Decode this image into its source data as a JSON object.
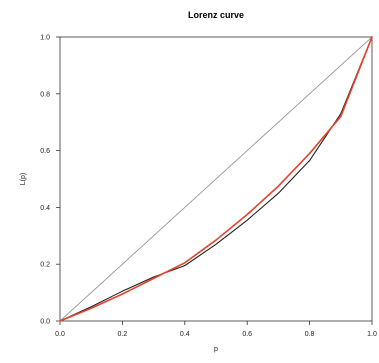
{
  "chart_data": {
    "type": "line",
    "title": "Lorenz curve",
    "xlabel": "p",
    "ylabel": "L(p)",
    "xlim": [
      0,
      1
    ],
    "ylim": [
      0,
      1
    ],
    "xticks": [
      "0.0",
      "0.2",
      "0.4",
      "0.6",
      "0.8",
      "1.0"
    ],
    "yticks": [
      "0.0",
      "0.2",
      "0.4",
      "0.6",
      "0.8",
      "1.0"
    ],
    "grid": false,
    "series": [
      {
        "color": "#9a9a9a",
        "x": [
          0,
          1
        ],
        "y": [
          0,
          1
        ]
      },
      {
        "color": "#222222",
        "x": [
          0,
          0.1,
          0.2,
          0.3,
          0.4,
          0.5,
          0.6,
          0.7,
          0.8,
          0.9,
          1.0
        ],
        "y": [
          0,
          0.05,
          0.105,
          0.155,
          0.195,
          0.27,
          0.355,
          0.45,
          0.565,
          0.73,
          1.0
        ]
      },
      {
        "color": "#e8412c",
        "x": [
          0,
          0.1,
          0.2,
          0.3,
          0.4,
          0.5,
          0.6,
          0.7,
          0.8,
          0.9,
          1.0
        ],
        "y": [
          0,
          0.045,
          0.095,
          0.15,
          0.205,
          0.285,
          0.375,
          0.475,
          0.59,
          0.72,
          1.0
        ]
      }
    ]
  }
}
